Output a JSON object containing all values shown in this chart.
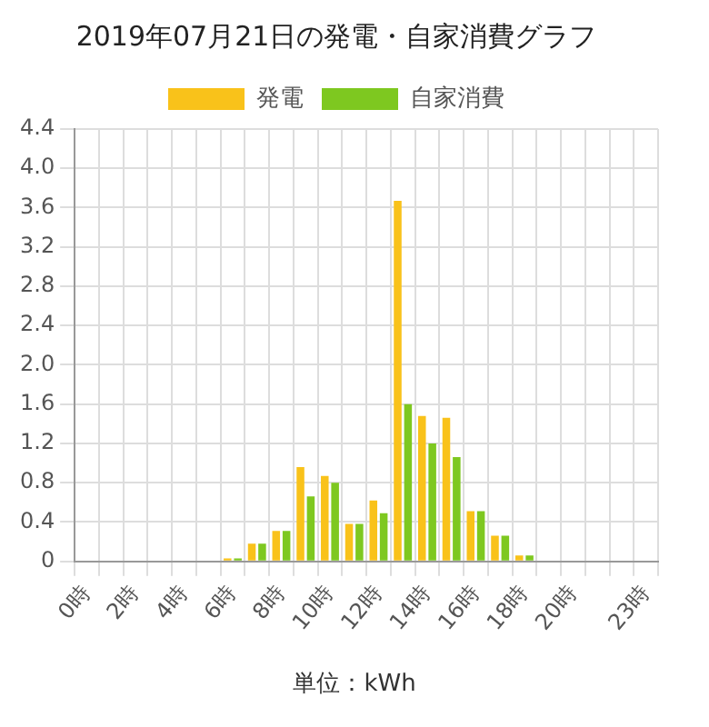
{
  "chart_data": {
    "type": "bar",
    "title": "2019年07月21日の発電・自家消費グラフ",
    "categories": [
      "0時",
      null,
      "2時",
      null,
      "4時",
      null,
      "6時",
      null,
      "8時",
      null,
      "10時",
      null,
      "12時",
      null,
      "14時",
      null,
      "16時",
      null,
      "18時",
      null,
      "20時",
      null,
      null,
      "23時"
    ],
    "series": [
      {
        "name": "発電",
        "color": "#f9c21a",
        "values": [
          0,
          0,
          0,
          0,
          0,
          0,
          0.03,
          0.18,
          0.31,
          0.96,
          0.87,
          0.38,
          0.62,
          3.67,
          1.48,
          1.46,
          0.51,
          0.26,
          0.06,
          0,
          0,
          0,
          0,
          0
        ]
      },
      {
        "name": "自家消費",
        "color": "#7ec820",
        "values": [
          0,
          0,
          0,
          0,
          0,
          0,
          0.03,
          0.18,
          0.31,
          0.66,
          0.8,
          0.38,
          0.49,
          1.6,
          1.2,
          1.06,
          0.51,
          0.26,
          0.06,
          0,
          0,
          0,
          0,
          0
        ]
      }
    ],
    "ylim": [
      0,
      4.4
    ],
    "yticks": [
      0,
      0.4,
      0.8,
      1.2,
      1.6,
      {
        "value": 2,
        "label": "2.0"
      },
      2.4,
      2.8,
      3.2,
      3.6,
      {
        "value": 4,
        "label": "4.0"
      },
      4.4
    ],
    "grid": true,
    "legend": "top",
    "annotations": [
      "単位：kWh"
    ]
  }
}
